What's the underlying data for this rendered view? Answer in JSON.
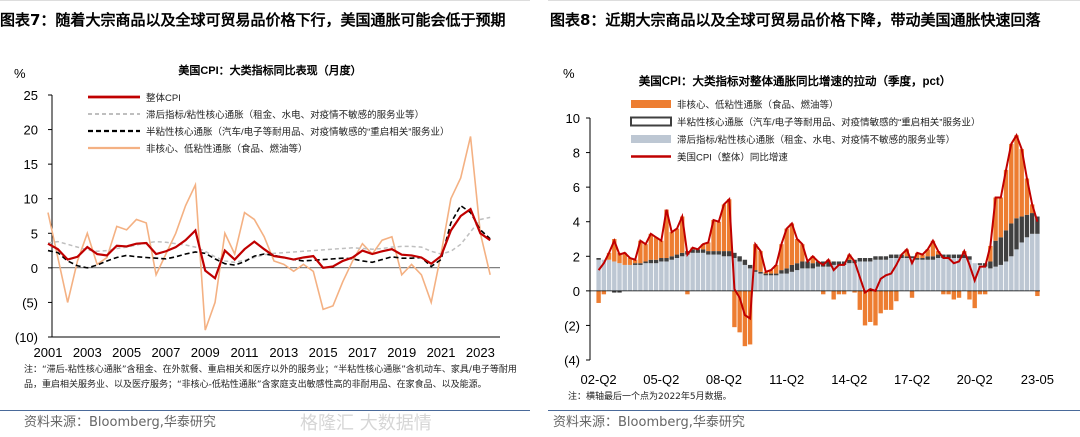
{
  "left": {
    "figure_title": "图表7：随着大宗商品以及全球可贸易品价格下行，美国通胀可能会低于预期",
    "note": "注：“滞后-粘性核心通胀”含租金、在外就餐、重启相关和医疗以外的服务业；“半粘性核心通胀”含机动车、家具/电子等耐用品，重启相关服务业、以及医疗服务；“非核心-低粘性通胀”含家庭支出敏感性高的非耐用品、在家食品、以及能源。",
    "source": "资料来源：Bloomberg,华泰研究"
  },
  "right": {
    "figure_title": "图表8：近期大宗商品以及全球可贸易品价格下降，带动美国通胀快速回落",
    "note": "注：横轴最后一个点为2022年5月数据。",
    "source": "资料来源：Bloomberg,华泰研究"
  },
  "watermark": "格隆汇 大数据情",
  "chart_data": [
    {
      "type": "line",
      "title": "美国CPI：大类指标同比表现（月度）",
      "ylabel": "%",
      "ylim": [
        -10,
        25
      ],
      "yticks": [
        "(10)",
        "(5)",
        "0",
        "5",
        "10",
        "15",
        "20",
        "25"
      ],
      "ytick_values": [
        -10,
        -5,
        0,
        5,
        10,
        15,
        20,
        25
      ],
      "xlim": [
        2001,
        2024
      ],
      "xticks": [
        "2001",
        "2003",
        "2005",
        "2007",
        "2009",
        "2011",
        "2013",
        "2015",
        "2017",
        "2019",
        "2021",
        "2023"
      ],
      "x_step": 0.5,
      "x_start": 2001,
      "series": [
        {
          "name": "整体CPI",
          "color": "#c00000",
          "dash": "",
          "width": 2.2,
          "values": [
            3.5,
            2.7,
            1.2,
            1.6,
            3.0,
            2.0,
            1.8,
            3.2,
            3.1,
            3.5,
            3.6,
            2.0,
            2.4,
            3.0,
            4.0,
            5.4,
            -0.4,
            -1.5,
            2.5,
            1.2,
            2.7,
            3.8,
            2.7,
            1.7,
            1.5,
            1.2,
            1.5,
            1.7,
            0.0,
            0.2,
            1.0,
            1.5,
            2.5,
            2.0,
            2.4,
            2.7,
            1.9,
            1.8,
            1.5,
            0.6,
            1.7,
            5.4,
            7.5,
            8.5,
            5.0,
            4.0
          ]
        },
        {
          "name": "滞后指标/粘性核心通胀（租金、水电、对疫情不敏感的服务业等）",
          "color": "#bfbfbf",
          "dash": "4,3",
          "width": 1.5,
          "values": [
            3.6,
            3.8,
            3.4,
            3.0,
            2.6,
            2.4,
            2.5,
            2.8,
            3.0,
            3.3,
            3.6,
            3.8,
            3.7,
            3.5,
            3.3,
            3.0,
            2.4,
            1.6,
            1.0,
            0.8,
            1.1,
            1.5,
            1.9,
            2.1,
            2.2,
            2.3,
            2.4,
            2.5,
            2.6,
            2.7,
            2.8,
            2.9,
            2.8,
            2.7,
            2.8,
            3.0,
            3.1,
            3.1,
            3.0,
            2.4,
            2.0,
            2.4,
            3.4,
            5.2,
            7.0,
            7.3
          ]
        },
        {
          "name": "半粘性核心通胀（汽车/电子等耐用品、对疫情敏感的“重启相关”服务业）",
          "color": "#000000",
          "dash": "5,3",
          "width": 1.6,
          "values": [
            2.5,
            2.2,
            1.0,
            0.3,
            0.0,
            0.4,
            1.0,
            1.5,
            1.8,
            1.6,
            1.5,
            1.4,
            1.3,
            1.6,
            2.0,
            2.3,
            2.1,
            1.3,
            0.6,
            0.4,
            0.9,
            1.7,
            2.0,
            1.8,
            1.5,
            1.2,
            1.0,
            1.1,
            1.2,
            1.3,
            1.4,
            1.3,
            1.0,
            0.8,
            1.2,
            1.6,
            1.4,
            1.4,
            1.5,
            0.2,
            1.2,
            6.5,
            9.0,
            8.0,
            5.5,
            4.2
          ]
        },
        {
          "name": "非核心、低粘性通胀（食品、燃油等）",
          "color": "#f4b183",
          "dash": "",
          "width": 1.6,
          "values": [
            8.0,
            1.5,
            -5.0,
            1.0,
            5.0,
            0.5,
            1.5,
            6.0,
            5.5,
            7.0,
            6.5,
            -1.0,
            2.0,
            5.0,
            9.0,
            12.0,
            -9.0,
            -5.0,
            5.0,
            2.0,
            8.0,
            7.0,
            4.5,
            1.0,
            0.5,
            -0.5,
            0.5,
            -0.5,
            -6.0,
            -5.5,
            -2.0,
            1.0,
            3.5,
            2.0,
            4.0,
            4.5,
            -1.0,
            0.5,
            -1.0,
            -5.0,
            2.0,
            10.0,
            13.0,
            19.0,
            5.0,
            -1.0
          ]
        }
      ]
    },
    {
      "type": "bar+line",
      "title": "美国CPI：大类指标对整体通胀同比增速的拉动（季度，pct）",
      "ylabel": "%",
      "ylim": [
        -4,
        10
      ],
      "yticks": [
        "(4)",
        "(2)",
        "0",
        "2",
        "4",
        "6",
        "8",
        "10"
      ],
      "ytick_values": [
        -4,
        -2,
        0,
        2,
        4,
        6,
        8,
        10
      ],
      "xticks": [
        "02-Q2",
        "05-Q2",
        "08-Q2",
        "11-Q2",
        "14-Q2",
        "17-Q2",
        "20-Q2",
        "23-05"
      ],
      "xtick_index": [
        0,
        12,
        24,
        36,
        48,
        60,
        72,
        84
      ],
      "stacked": true,
      "series": [
        {
          "name": "滞后指标/粘性核心通胀（租金、水电、对疫情不敏感的服务业等）",
          "color": "#bdc7d3",
          "kind": "bar",
          "values": [
            1.8,
            1.8,
            1.8,
            1.7,
            1.6,
            1.5,
            1.5,
            1.5,
            1.5,
            1.6,
            1.6,
            1.6,
            1.7,
            1.7,
            1.8,
            1.9,
            2.0,
            2.1,
            2.2,
            2.2,
            2.2,
            2.1,
            2.1,
            2.1,
            2.0,
            2.0,
            1.9,
            1.7,
            1.5,
            1.3,
            1.1,
            1.0,
            0.9,
            0.9,
            0.9,
            1.0,
            1.0,
            1.1,
            1.2,
            1.3,
            1.3,
            1.3,
            1.4,
            1.4,
            1.4,
            1.5,
            1.5,
            1.5,
            1.6,
            1.6,
            1.7,
            1.7,
            1.7,
            1.8,
            1.8,
            1.8,
            1.9,
            1.9,
            1.9,
            1.9,
            1.9,
            1.8,
            1.8,
            1.8,
            1.8,
            1.9,
            1.9,
            1.9,
            1.9,
            1.9,
            1.9,
            1.8,
            1.6,
            1.5,
            1.4,
            1.3,
            1.4,
            1.5,
            1.7,
            2.0,
            2.4,
            2.8,
            3.1,
            3.3,
            3.3
          ]
        },
        {
          "name": "半粘性核心通胀（汽车/电子等耐用品、对疫情敏感的“重启相关”服务业）",
          "color": "#404040",
          "kind": "bar",
          "values": [
            0.1,
            0.0,
            0.0,
            -0.1,
            -0.1,
            0.0,
            0.0,
            0.1,
            0.1,
            0.1,
            0.2,
            0.2,
            0.2,
            0.2,
            0.2,
            0.2,
            0.2,
            0.2,
            0.2,
            0.2,
            0.2,
            0.2,
            0.2,
            0.2,
            0.3,
            0.3,
            0.3,
            0.3,
            0.3,
            0.2,
            0.1,
            0.1,
            0.1,
            0.1,
            0.1,
            0.2,
            0.3,
            0.4,
            0.4,
            0.4,
            0.4,
            0.3,
            0.3,
            0.3,
            0.3,
            0.2,
            0.2,
            0.2,
            0.2,
            0.2,
            0.2,
            0.2,
            0.2,
            0.2,
            0.2,
            0.2,
            0.2,
            0.2,
            0.2,
            0.1,
            0.1,
            0.1,
            0.1,
            0.2,
            0.2,
            0.2,
            0.2,
            0.2,
            0.2,
            0.2,
            0.2,
            0.2,
            0.0,
            0.1,
            0.2,
            0.4,
            1.5,
            1.6,
            1.8,
            1.9,
            1.8,
            1.5,
            1.3,
            1.2,
            1.0
          ]
        },
        {
          "name": "非核心、低粘性通胀（食品、燃油等）",
          "color": "#ed7d31",
          "kind": "bar",
          "derived": "cpi - sticky - semi"
        },
        {
          "name": "美国CPI（整体）同比增速",
          "color": "#c00000",
          "kind": "line",
          "values": [
            1.2,
            1.6,
            2.2,
            2.9,
            2.1,
            2.2,
            1.9,
            1.8,
            2.9,
            2.7,
            3.3,
            3.1,
            2.9,
            4.7,
            3.4,
            3.6,
            4.3,
            2.1,
            2.5,
            2.4,
            2.7,
            2.8,
            4.1,
            4.0,
            5.0,
            5.3,
            0.1,
            -0.4,
            -1.4,
            -1.6,
            2.7,
            2.3,
            1.1,
            1.2,
            1.5,
            2.7,
            3.6,
            3.9,
            3.0,
            2.7,
            1.7,
            2.0,
            1.7,
            1.5,
            1.8,
            1.2,
            1.5,
            1.5,
            2.1,
            1.7,
            0.8,
            -0.1,
            0.1,
            0.0,
            0.7,
            0.9,
            1.0,
            1.5,
            2.1,
            2.4,
            1.6,
            2.2,
            2.1,
            2.4,
            2.9,
            2.3,
            1.9,
            1.9,
            1.6,
            1.7,
            2.3,
            1.5,
            0.6,
            1.4,
            1.4,
            2.6,
            5.4,
            5.4,
            7.0,
            8.5,
            9.0,
            8.2,
            6.5,
            5.0,
            4.0
          ]
        }
      ]
    }
  ]
}
